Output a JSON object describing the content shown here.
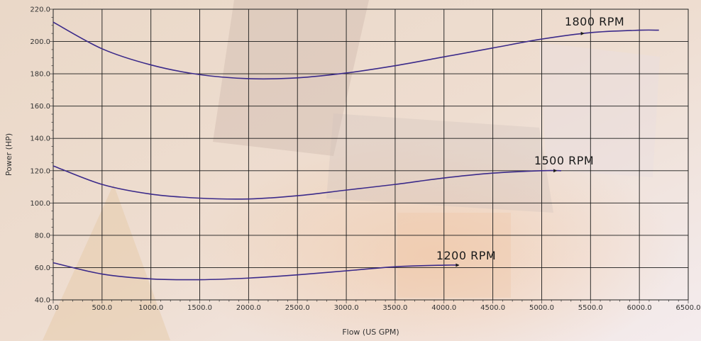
{
  "chart_data": {
    "type": "line",
    "title": "",
    "xlabel": "Flow (US GPM)",
    "ylabel": "Power (HP)",
    "xlim": [
      0,
      6500
    ],
    "ylim": [
      40,
      220
    ],
    "x_ticks": [
      "0.0",
      "500.0",
      "1000.0",
      "1500.0",
      "2000.0",
      "2500.0",
      "3000.0",
      "3500.0",
      "4000.0",
      "4500.0",
      "5000.0",
      "5500.0",
      "6000.0",
      "6500.0"
    ],
    "y_ticks": [
      "40.0",
      "60.0",
      "80.0",
      "100.0",
      "120.0",
      "140.0",
      "160.0",
      "180.0",
      "200.0",
      "220.0"
    ],
    "grid": true,
    "line_color": "#3b2a8a",
    "series": [
      {
        "name": "1800 RPM",
        "x": [
          0,
          500,
          1000,
          1500,
          2000,
          2500,
          3000,
          3500,
          4000,
          4500,
          5000,
          5500,
          6000,
          6200
        ],
        "values": [
          212,
          195.5,
          185.5,
          179.5,
          177,
          177.5,
          180.5,
          185,
          190.5,
          196,
          201.5,
          205.5,
          207,
          207
        ]
      },
      {
        "name": "1500 RPM",
        "x": [
          0,
          500,
          1000,
          1500,
          2000,
          2500,
          3000,
          3500,
          4000,
          4500,
          5000,
          5200
        ],
        "values": [
          123,
          111.5,
          105.5,
          103,
          102.5,
          104.5,
          108,
          111.5,
          115.5,
          118.5,
          120,
          120
        ]
      },
      {
        "name": "1200 RPM",
        "x": [
          0,
          500,
          1000,
          1500,
          2000,
          2500,
          3000,
          3500,
          4000,
          4150
        ],
        "values": [
          63,
          56,
          53,
          52.5,
          53.5,
          55.5,
          58,
          60.5,
          61.5,
          61.5
        ]
      }
    ]
  }
}
